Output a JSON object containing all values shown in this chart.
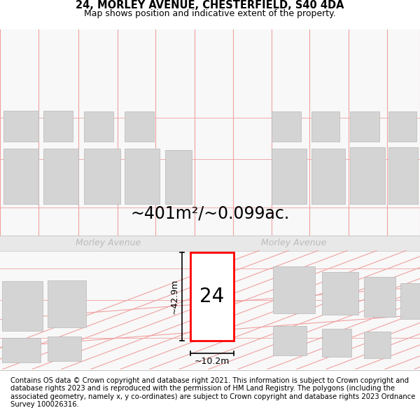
{
  "title_line1": "24, MORLEY AVENUE, CHESTERFIELD, S40 4DA",
  "title_line2": "Map shows position and indicative extent of the property.",
  "area_text": "~401m²/~0.099ac.",
  "street_label": "Morley Avenue",
  "property_number": "24",
  "dim_height": "~42.9m",
  "dim_width": "~10.2m",
  "footer_text": "Contains OS data © Crown copyright and database right 2021. This information is subject to Crown copyright and database rights 2023 and is reproduced with the permission of HM Land Registry. The polygons (including the associated geometry, namely x, y co-ordinates) are subject to Crown copyright and database rights 2023 Ordnance Survey 100026316.",
  "bg_color": "#ffffff",
  "grid_color": "#f0a0a0",
  "building_color": "#d4d4d4",
  "subject_outline": "#ff0000",
  "street_text_color": "#bbbbbb",
  "title_fontsize": 10.5,
  "subtitle_fontsize": 9,
  "area_fontsize": 17,
  "street_label_fontsize": 9,
  "number_fontsize": 20,
  "dim_fontsize": 9,
  "footer_fontsize": 7.2
}
